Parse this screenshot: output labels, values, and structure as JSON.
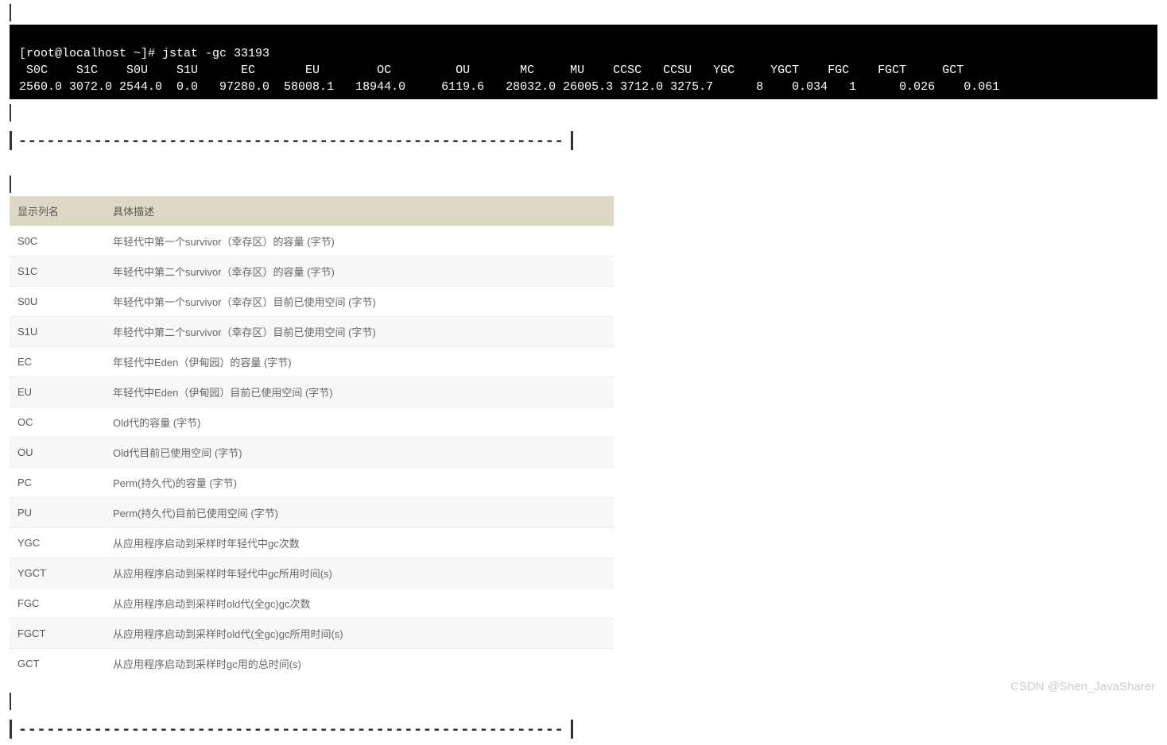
{
  "terminal": {
    "background": "#000000",
    "foreground": "#ffffff",
    "font_family": "monospace",
    "prompt": "[root@localhost ~]# jstat -gc 33193",
    "headers": " S0C    S1C    S0U    S1U      EC       EU        OC         OU       MC     MU    CCSC   CCSU   YGC     YGCT    FGC    FGCT     GCT",
    "values": "2560.0 3072.0 2544.0  0.0   97280.0  58008.1   18944.0     6119.6   28032.0 26005.3 3712.0 3275.7      8    0.034   1      0.026    0.061"
  },
  "divider": {
    "dashes": "----------------------------------------------------------"
  },
  "table": {
    "header_bg": "#ddd8c3",
    "columns": [
      "显示列名",
      "具体描述"
    ],
    "rows": [
      [
        "S0C",
        "年轻代中第一个survivor（幸存区）的容量 (字节)"
      ],
      [
        "S1C",
        "年轻代中第二个survivor（幸存区）的容量 (字节)"
      ],
      [
        "S0U",
        "年轻代中第一个survivor（幸存区）目前已使用空间 (字节)"
      ],
      [
        "S1U",
        "年轻代中第二个survivor（幸存区）目前已使用空间 (字节)"
      ],
      [
        "EC",
        "年轻代中Eden（伊甸园）的容量 (字节)"
      ],
      [
        "EU",
        "年轻代中Eden（伊甸园）目前已使用空间 (字节)"
      ],
      [
        "OC",
        "Old代的容量 (字节)"
      ],
      [
        "OU",
        "Old代目前已使用空间 (字节)"
      ],
      [
        "PC",
        "Perm(持久代)的容量 (字节)"
      ],
      [
        "PU",
        "Perm(持久代)目前已使用空间 (字节)"
      ],
      [
        "YGC",
        "从应用程序启动到采样时年轻代中gc次数"
      ],
      [
        "YGCT",
        "从应用程序启动到采样时年轻代中gc所用时间(s)"
      ],
      [
        "FGC",
        "从应用程序启动到采样时old代(全gc)gc次数"
      ],
      [
        "FGCT",
        "从应用程序启动到采样时old代(全gc)gc所用时间(s)"
      ],
      [
        "GCT",
        "从应用程序启动到采样时gc用的总时间(s)"
      ]
    ]
  },
  "watermark": "CSDN @Shen_JavaSharer"
}
